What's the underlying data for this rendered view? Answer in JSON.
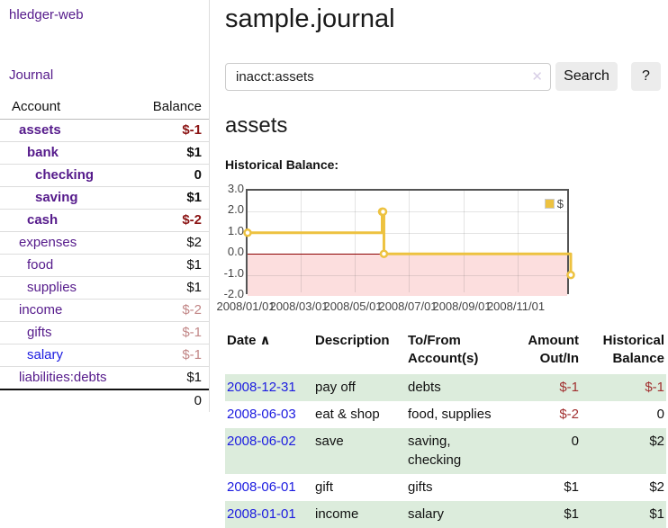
{
  "app": {
    "title": "hledger-web"
  },
  "sidebar": {
    "journal_link": "Journal",
    "accounts": {
      "account_header": "Account",
      "balance_header": "Balance",
      "rows": [
        {
          "name": "assets",
          "balance": "$-1"
        },
        {
          "name": "bank",
          "balance": "$1"
        },
        {
          "name": "checking",
          "balance": "0"
        },
        {
          "name": "saving",
          "balance": "$1"
        },
        {
          "name": "cash",
          "balance": "$-2"
        },
        {
          "name": "expenses",
          "balance": "$2"
        },
        {
          "name": "food",
          "balance": "$1"
        },
        {
          "name": "supplies",
          "balance": "$1"
        },
        {
          "name": "income",
          "balance": "$-2"
        },
        {
          "name": "gifts",
          "balance": "$-1"
        },
        {
          "name": "salary",
          "balance": "$-1"
        },
        {
          "name": "liabilities:debts",
          "balance": "$1"
        }
      ],
      "total": "0"
    }
  },
  "main": {
    "title": "sample.journal",
    "search": {
      "value": "inacct:assets",
      "clear_icon": "✕",
      "button_label": "Search",
      "help_label": "?"
    },
    "account_heading": "assets",
    "chart_label": "Historical Balance:",
    "register": {
      "headers": {
        "date": "Date",
        "sort_indicator": "∧",
        "description": "Description",
        "accounts": "To/From Account(s)",
        "amount": "Amount Out/In",
        "balance": "Historical Balance"
      },
      "rows": [
        {
          "date": "2008-12-31",
          "description": "pay off",
          "accounts": "debts",
          "amount": "$-1",
          "balance": "$-1"
        },
        {
          "date": "2008-06-03",
          "description": "eat & shop",
          "accounts": "food, supplies",
          "amount": "$-2",
          "balance": "0"
        },
        {
          "date": "2008-06-02",
          "description": "save",
          "accounts": "saving, checking",
          "amount": "0",
          "balance": "$2"
        },
        {
          "date": "2008-06-01",
          "description": "gift",
          "accounts": "gifts",
          "amount": "$1",
          "balance": "$2"
        },
        {
          "date": "2008-01-01",
          "description": "income",
          "accounts": "salary",
          "amount": "$1",
          "balance": "$1"
        }
      ]
    }
  },
  "colors": {
    "link_purple": "#551a8b",
    "link_blue": "#1b1be0",
    "negative_strong": "#8b1414",
    "negative_soft": "#c28787",
    "table_negative": "#a12f2f",
    "row_highlight_green": "#dcecdc"
  },
  "chart_data": {
    "type": "line",
    "title": "Historical Balance",
    "step": true,
    "series": [
      {
        "name": "$",
        "color": "#edc240",
        "x": [
          "2008-01-01",
          "2008-06-01",
          "2008-06-02",
          "2008-06-03",
          "2008-12-31"
        ],
        "values": [
          1,
          2,
          2,
          0,
          -1
        ]
      }
    ],
    "xlim": [
      "2008-01-01",
      "2008-12-31"
    ],
    "ylim": [
      -2,
      3
    ],
    "yticks": [
      "3.0",
      "2.0",
      "1.0",
      "0.0",
      "-1.0",
      "-2.0"
    ],
    "xticks": [
      "2008/01/01",
      "2008/03/01",
      "2008/05/01",
      "2008/07/01",
      "2008/09/01",
      "2008/11/01"
    ],
    "legend_position": "top-right",
    "grid": true,
    "negative_region_color": "#fcdede",
    "zero_line_color": "#8b0000"
  }
}
